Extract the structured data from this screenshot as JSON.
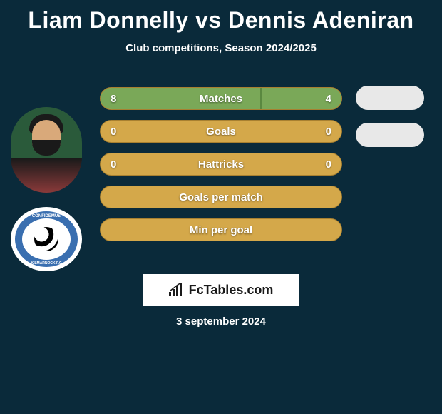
{
  "title": "Liam Donnelly vs Dennis Adeniran",
  "subtitle": "Club competitions, Season 2024/2025",
  "date": "3 september 2024",
  "logo_text": "FcTables.com",
  "club_badge": {
    "top": "CONFIDEMUS",
    "bottom": "KILMARNOCK F.C"
  },
  "colors": {
    "background": "#0a2a3a",
    "bar_base": "#d4a84a",
    "bar_fill": "#7aa858",
    "text": "#ffffff",
    "logo_bg": "#ffffff",
    "logo_text": "#1a1a1a"
  },
  "rows": [
    {
      "label": "Matches",
      "left": "8",
      "right": "4",
      "left_pct": 66.7,
      "right_pct": 33.3,
      "show_vals": true
    },
    {
      "label": "Goals",
      "left": "0",
      "right": "0",
      "left_pct": 0,
      "right_pct": 0,
      "show_vals": true
    },
    {
      "label": "Hattricks",
      "left": "0",
      "right": "0",
      "left_pct": 0,
      "right_pct": 0,
      "show_vals": true
    },
    {
      "label": "Goals per match",
      "left": "",
      "right": "",
      "left_pct": 0,
      "right_pct": 0,
      "show_vals": false
    },
    {
      "label": "Min per goal",
      "left": "",
      "right": "",
      "left_pct": 0,
      "right_pct": 0,
      "show_vals": false
    }
  ]
}
